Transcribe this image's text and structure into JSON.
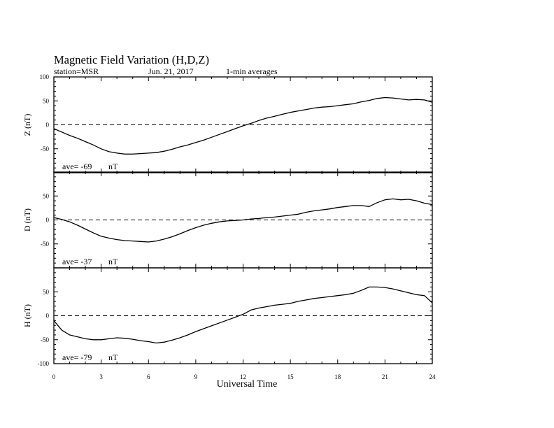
{
  "header": {
    "title": "Magnetic Field Variation (H,D,Z)",
    "station": "station=MSR",
    "date": "Jun. 21, 2017",
    "averaging": "1-min averages"
  },
  "chart_data": {
    "type": "line",
    "xlabel": "Universal Time",
    "xlim": [
      0,
      24
    ],
    "x_ticks": [
      "0",
      "3",
      "6",
      "9",
      "12",
      "15",
      "18",
      "21",
      "24"
    ],
    "zero_line": "dashed",
    "panels": [
      {
        "name": "Z",
        "ylabel": "Z (nT)",
        "ylim": [
          -100,
          100
        ],
        "y_ticks": [
          "100",
          "50",
          "0",
          "-50"
        ],
        "ave_label": "ave= -69",
        "ave_unit": "nT",
        "x": [
          0,
          0.5,
          1,
          1.5,
          2,
          2.5,
          3,
          3.5,
          4,
          4.5,
          5,
          5.5,
          6,
          6.5,
          7,
          7.5,
          8,
          8.5,
          9,
          9.5,
          10,
          10.5,
          11,
          11.5,
          12,
          12.5,
          13,
          13.5,
          14,
          14.5,
          15,
          15.5,
          16,
          16.5,
          17,
          17.5,
          18,
          18.5,
          19,
          19.5,
          20,
          20.5,
          21,
          21.5,
          22,
          22.5,
          23,
          23.5,
          24
        ],
        "values": [
          -8,
          -15,
          -22,
          -28,
          -35,
          -42,
          -50,
          -56,
          -59,
          -61,
          -61,
          -60,
          -59,
          -58,
          -55,
          -51,
          -46,
          -42,
          -37,
          -32,
          -26,
          -20,
          -14,
          -8,
          -2,
          3,
          9,
          14,
          18,
          22,
          26,
          29,
          32,
          35,
          37,
          38,
          40,
          42,
          44,
          48,
          51,
          55,
          57,
          56,
          54,
          52,
          53,
          52,
          47
        ]
      },
      {
        "name": "D",
        "ylabel": "D (nT)",
        "ylim": [
          -100,
          100
        ],
        "y_ticks": [
          "50",
          "0",
          "-50"
        ],
        "ave_label": "ave= -37",
        "ave_unit": "nT",
        "x": [
          0,
          0.5,
          1,
          1.5,
          2,
          2.5,
          3,
          3.5,
          4,
          4.5,
          5,
          5.5,
          6,
          6.5,
          7,
          7.5,
          8,
          8.5,
          9,
          9.5,
          10,
          10.5,
          11,
          11.5,
          12,
          12.5,
          13,
          13.5,
          14,
          14.5,
          15,
          15.5,
          16,
          16.5,
          17,
          17.5,
          18,
          18.5,
          19,
          19.5,
          20,
          20.5,
          21,
          21.5,
          22,
          22.5,
          23,
          23.5,
          24
        ],
        "values": [
          5,
          1,
          -4,
          -11,
          -19,
          -27,
          -34,
          -38,
          -41,
          -43,
          -44,
          -45,
          -46,
          -44,
          -40,
          -35,
          -29,
          -22,
          -16,
          -11,
          -7,
          -4,
          -2,
          -1,
          0,
          2,
          3,
          5,
          6,
          8,
          10,
          12,
          16,
          19,
          21,
          23,
          26,
          28,
          30,
          30,
          28,
          36,
          42,
          44,
          42,
          43,
          40,
          35,
          32
        ]
      },
      {
        "name": "H",
        "ylabel": "H (nT)",
        "ylim": [
          -100,
          100
        ],
        "y_ticks": [
          "50",
          "0",
          "-50",
          "-100"
        ],
        "ave_label": "ave= -79",
        "ave_unit": "nT",
        "x": [
          0,
          0.5,
          1,
          1.5,
          2,
          2.5,
          3,
          3.5,
          4,
          4.5,
          5,
          5.5,
          6,
          6.5,
          7,
          7.5,
          8,
          8.5,
          9,
          9.5,
          10,
          10.5,
          11,
          11.5,
          12,
          12.5,
          13,
          13.5,
          14,
          14.5,
          15,
          15.5,
          16,
          16.5,
          17,
          17.5,
          18,
          18.5,
          19,
          19.5,
          20,
          20.5,
          21,
          21.5,
          22,
          22.5,
          23,
          23.5,
          24
        ],
        "values": [
          -10,
          -30,
          -40,
          -44,
          -48,
          -50,
          -50,
          -48,
          -46,
          -47,
          -49,
          -52,
          -54,
          -57,
          -55,
          -51,
          -46,
          -40,
          -33,
          -27,
          -21,
          -15,
          -9,
          -3,
          3,
          12,
          16,
          19,
          22,
          24,
          26,
          30,
          33,
          36,
          38,
          40,
          42,
          44,
          47,
          53,
          60,
          60,
          59,
          56,
          52,
          48,
          44,
          42,
          27
        ]
      }
    ]
  }
}
